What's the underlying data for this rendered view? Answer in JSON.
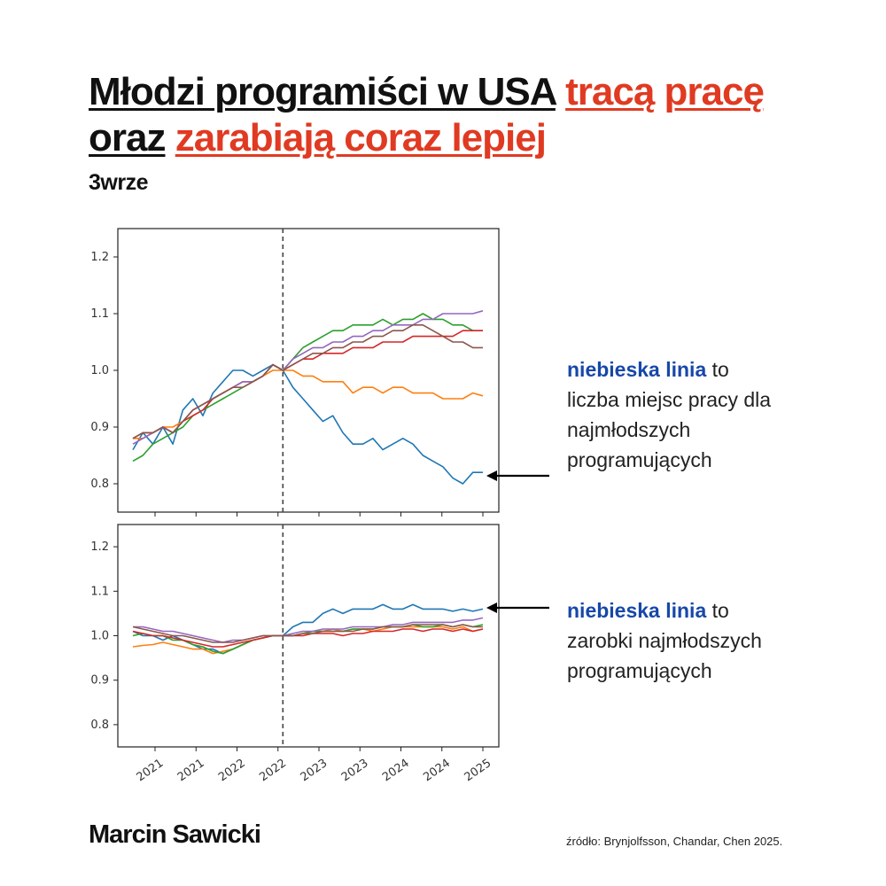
{
  "header": {
    "title_parts": [
      "Młodzi programiści w USA",
      "tracą",
      "pracę",
      "oraz",
      "zarabiają coraz lepiej"
    ],
    "date": "3wrze"
  },
  "annotations": {
    "top": {
      "highlight": "niebieska linia",
      "rest": " to",
      "lines": [
        "liczba miejsc pracy dla",
        "najmłodszych",
        "programujących"
      ]
    },
    "bottom": {
      "highlight": "niebieska linia",
      "rest": " to",
      "lines": [
        "zarobki najmłodszych",
        "programujących"
      ]
    }
  },
  "footer": {
    "author": "Marcin Sawicki",
    "source": "źródło: Brynjolfsson, Chandar, Chen 2025."
  },
  "colors": {
    "accent_red": "#e03a22",
    "highlight_blue": "#1748a8"
  },
  "chart_data": [
    {
      "type": "line",
      "x_tick_labels": [
        "2021",
        "2021",
        "2022",
        "2022",
        "2023",
        "2023",
        "2024",
        "2024",
        "2025"
      ],
      "ylim": [
        0.75,
        1.25
      ],
      "yticks": [
        0.8,
        0.9,
        1.0,
        1.1,
        1.2
      ],
      "x_range": [
        0,
        35
      ],
      "reference_line_x": 15,
      "grid": false,
      "series": [
        {
          "color": "#1f77b4",
          "values": [
            0.86,
            0.89,
            0.87,
            0.9,
            0.87,
            0.93,
            0.95,
            0.92,
            0.96,
            0.98,
            1.0,
            1.0,
            0.99,
            1.0,
            1.01,
            1.0,
            0.97,
            0.95,
            0.93,
            0.91,
            0.92,
            0.89,
            0.87,
            0.87,
            0.88,
            0.86,
            0.87,
            0.88,
            0.87,
            0.85,
            0.84,
            0.83,
            0.81,
            0.8,
            0.82,
            0.82
          ]
        },
        {
          "color": "#ff7f0e",
          "values": [
            0.88,
            0.88,
            0.89,
            0.9,
            0.9,
            0.91,
            0.93,
            0.94,
            0.95,
            0.96,
            0.97,
            0.98,
            0.98,
            0.99,
            1.0,
            1.0,
            1.0,
            0.99,
            0.99,
            0.98,
            0.98,
            0.98,
            0.96,
            0.97,
            0.97,
            0.96,
            0.97,
            0.97,
            0.96,
            0.96,
            0.96,
            0.95,
            0.95,
            0.95,
            0.96,
            0.955
          ]
        },
        {
          "color": "#2ca02c",
          "values": [
            0.84,
            0.85,
            0.87,
            0.88,
            0.89,
            0.9,
            0.92,
            0.93,
            0.94,
            0.95,
            0.96,
            0.97,
            0.98,
            0.99,
            1.01,
            1.0,
            1.02,
            1.04,
            1.05,
            1.06,
            1.07,
            1.07,
            1.08,
            1.08,
            1.08,
            1.09,
            1.08,
            1.09,
            1.09,
            1.1,
            1.09,
            1.09,
            1.08,
            1.08,
            1.07,
            1.07
          ]
        },
        {
          "color": "#d62728",
          "values": [
            0.88,
            0.89,
            0.89,
            0.9,
            0.89,
            0.91,
            0.92,
            0.93,
            0.95,
            0.96,
            0.97,
            0.98,
            0.98,
            0.99,
            1.01,
            1.0,
            1.01,
            1.02,
            1.02,
            1.03,
            1.03,
            1.03,
            1.04,
            1.04,
            1.04,
            1.05,
            1.05,
            1.05,
            1.06,
            1.06,
            1.06,
            1.06,
            1.06,
            1.07,
            1.07,
            1.07
          ]
        },
        {
          "color": "#9467bd",
          "values": [
            0.87,
            0.88,
            0.89,
            0.9,
            0.89,
            0.91,
            0.93,
            0.94,
            0.95,
            0.96,
            0.97,
            0.98,
            0.98,
            0.99,
            1.01,
            1.0,
            1.02,
            1.03,
            1.04,
            1.04,
            1.05,
            1.05,
            1.06,
            1.06,
            1.07,
            1.07,
            1.08,
            1.08,
            1.08,
            1.09,
            1.09,
            1.1,
            1.1,
            1.1,
            1.1,
            1.105
          ]
        },
        {
          "color": "#8c564b",
          "values": [
            0.88,
            0.89,
            0.89,
            0.9,
            0.89,
            0.91,
            0.93,
            0.94,
            0.95,
            0.96,
            0.97,
            0.97,
            0.98,
            0.99,
            1.01,
            1.0,
            1.01,
            1.02,
            1.03,
            1.03,
            1.04,
            1.04,
            1.05,
            1.05,
            1.06,
            1.06,
            1.07,
            1.07,
            1.08,
            1.08,
            1.07,
            1.06,
            1.05,
            1.05,
            1.04,
            1.04
          ]
        }
      ]
    },
    {
      "type": "line",
      "x_tick_labels": [
        "2021",
        "2021",
        "2022",
        "2022",
        "2023",
        "2023",
        "2024",
        "2024",
        "2025"
      ],
      "ylim": [
        0.75,
        1.25
      ],
      "yticks": [
        0.8,
        0.9,
        1.0,
        1.1,
        1.2
      ],
      "x_range": [
        0,
        35
      ],
      "reference_line_x": 15,
      "grid": false,
      "series": [
        {
          "color": "#1f77b4",
          "values": [
            1.01,
            1.0,
            1.0,
            0.99,
            1.0,
            0.99,
            0.98,
            0.97,
            0.97,
            0.96,
            0.97,
            0.98,
            0.99,
            0.995,
            1.0,
            1.0,
            1.02,
            1.03,
            1.03,
            1.05,
            1.06,
            1.05,
            1.06,
            1.06,
            1.06,
            1.07,
            1.06,
            1.06,
            1.07,
            1.06,
            1.06,
            1.06,
            1.055,
            1.06,
            1.055,
            1.06
          ]
        },
        {
          "color": "#ff7f0e",
          "values": [
            0.975,
            0.978,
            0.98,
            0.985,
            0.98,
            0.975,
            0.97,
            0.97,
            0.96,
            0.965,
            0.97,
            0.98,
            0.99,
            0.995,
            1.0,
            1.0,
            1.0,
            1.005,
            1.01,
            1.01,
            1.015,
            1.01,
            1.015,
            1.015,
            1.01,
            1.015,
            1.02,
            1.02,
            1.02,
            1.02,
            1.02,
            1.02,
            1.015,
            1.02,
            1.01,
            1.015
          ]
        },
        {
          "color": "#2ca02c",
          "values": [
            1.0,
            1.005,
            1.0,
            1.0,
            0.99,
            0.99,
            0.98,
            0.975,
            0.965,
            0.96,
            0.97,
            0.98,
            0.99,
            0.995,
            1.0,
            1.0,
            1.0,
            1.005,
            1.01,
            1.01,
            1.01,
            1.01,
            1.015,
            1.015,
            1.015,
            1.02,
            1.02,
            1.02,
            1.025,
            1.02,
            1.02,
            1.025,
            1.02,
            1.025,
            1.02,
            1.025
          ]
        },
        {
          "color": "#d62728",
          "values": [
            1.01,
            1.005,
            1.0,
            1.0,
            0.995,
            0.99,
            0.985,
            0.98,
            0.975,
            0.975,
            0.98,
            0.985,
            0.99,
            0.995,
            1.0,
            1.0,
            1.0,
            1.0,
            1.005,
            1.005,
            1.005,
            1.0,
            1.005,
            1.005,
            1.01,
            1.01,
            1.01,
            1.015,
            1.015,
            1.01,
            1.015,
            1.015,
            1.01,
            1.015,
            1.01,
            1.015
          ]
        },
        {
          "color": "#9467bd",
          "values": [
            1.02,
            1.02,
            1.015,
            1.01,
            1.01,
            1.005,
            1.0,
            0.995,
            0.99,
            0.985,
            0.99,
            0.99,
            0.995,
            1.0,
            1.0,
            1.0,
            1.005,
            1.01,
            1.01,
            1.015,
            1.015,
            1.015,
            1.02,
            1.02,
            1.02,
            1.02,
            1.025,
            1.025,
            1.03,
            1.03,
            1.03,
            1.03,
            1.03,
            1.035,
            1.035,
            1.04
          ]
        },
        {
          "color": "#8c564b",
          "values": [
            1.02,
            1.015,
            1.01,
            1.005,
            1.0,
            1.0,
            0.995,
            0.99,
            0.985,
            0.985,
            0.985,
            0.99,
            0.995,
            1.0,
            1.0,
            1.0,
            1.0,
            1.005,
            1.005,
            1.01,
            1.01,
            1.01,
            1.01,
            1.015,
            1.015,
            1.02,
            1.02,
            1.02,
            1.025,
            1.025,
            1.025,
            1.025,
            1.02,
            1.025,
            1.02,
            1.02
          ]
        }
      ]
    }
  ]
}
